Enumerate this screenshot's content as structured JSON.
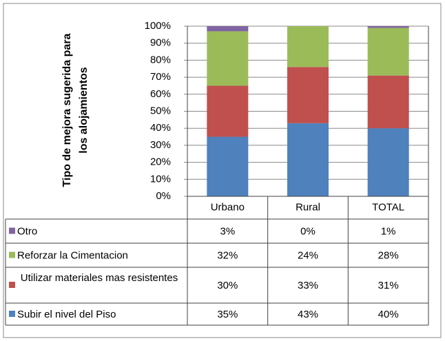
{
  "chart_data": {
    "type": "stacked_bar",
    "ylabel": [
      "Tipo de mejora sugerida para",
      "los alojamientos"
    ],
    "categories": [
      "Urbano",
      "Rural",
      "TOTAL"
    ],
    "series": [
      {
        "name": "Subir el nivel del Piso",
        "color": "#4f81bd",
        "values": [
          35,
          43,
          40
        ],
        "value_labels": [
          "35%",
          "43%",
          "40%"
        ]
      },
      {
        "name": "Utilizar materiales mas resistentes",
        "color": "#c0504d",
        "values": [
          30,
          33,
          31
        ],
        "value_labels": [
          "30%",
          "33%",
          "31%"
        ]
      },
      {
        "name": "Reforzar la Cimentacion",
        "color": "#9bbb59",
        "values": [
          32,
          24,
          28
        ],
        "value_labels": [
          "32%",
          "24%",
          "28%"
        ]
      },
      {
        "name": "Otro",
        "color": "#8064a2",
        "values": [
          3,
          0,
          1
        ],
        "value_labels": [
          "3%",
          "0%",
          "1%"
        ]
      }
    ],
    "ylim": [
      0,
      100
    ],
    "yticks": [
      {
        "value": 0,
        "label": "0%"
      },
      {
        "value": 10,
        "label": "10%"
      },
      {
        "value": 20,
        "label": "20%"
      },
      {
        "value": 30,
        "label": "30%"
      },
      {
        "value": 40,
        "label": "40%"
      },
      {
        "value": 50,
        "label": "50%"
      },
      {
        "value": 60,
        "label": "60%"
      },
      {
        "value": 70,
        "label": "70%"
      },
      {
        "value": 80,
        "label": "80%"
      },
      {
        "value": 90,
        "label": "90%"
      },
      {
        "value": 100,
        "label": "100%"
      }
    ],
    "grid": true
  }
}
